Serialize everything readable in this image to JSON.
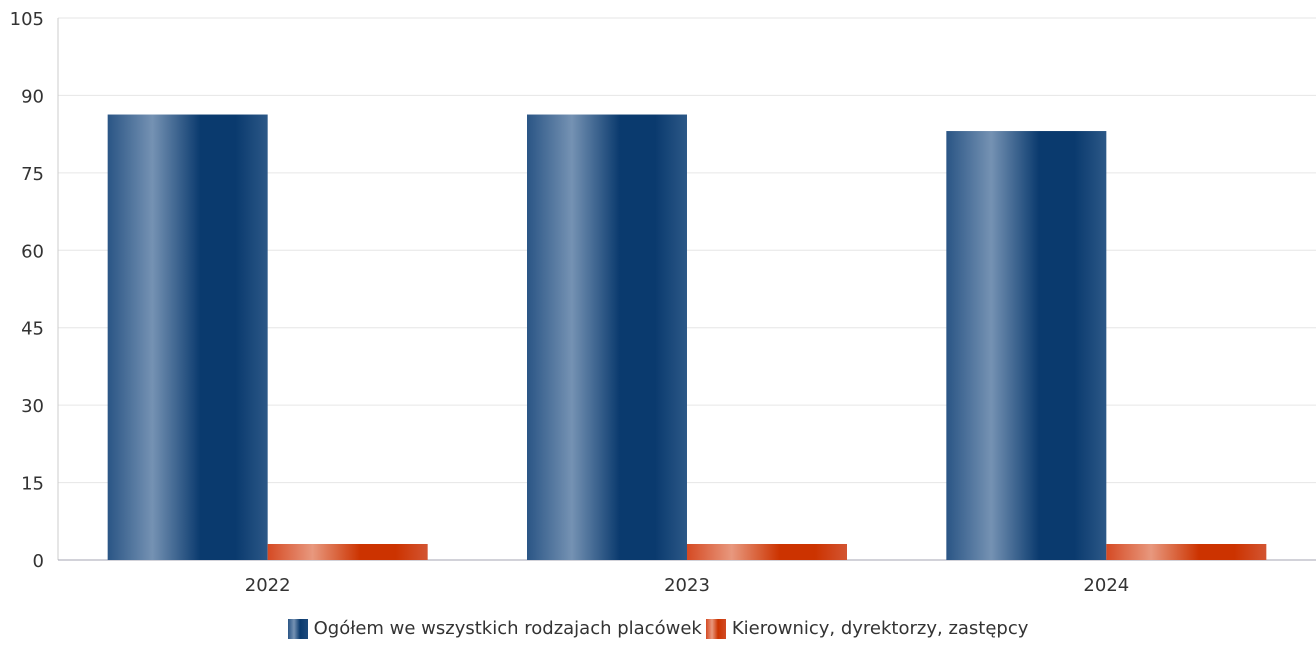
{
  "chart_data": {
    "type": "bar",
    "categories": [
      "2022",
      "2023",
      "2024"
    ],
    "series": [
      {
        "name": "Ogółem we wszystkich rodzajach placówek",
        "values": [
          86.3,
          86.3,
          83.1
        ],
        "color": "#0a3a6e"
      },
      {
        "name": "Kierownicy, dyrektorzy, zastępcy",
        "values": [
          3.1,
          3.1,
          3.1
        ],
        "color": "#cc3300"
      }
    ],
    "y_ticks": [
      "0",
      "15",
      "30",
      "45",
      "60",
      "75",
      "90",
      "105"
    ],
    "ylim": [
      0,
      105
    ],
    "grid": true,
    "legend_position": "bottom",
    "title": "",
    "xlabel": "",
    "ylabel": ""
  }
}
